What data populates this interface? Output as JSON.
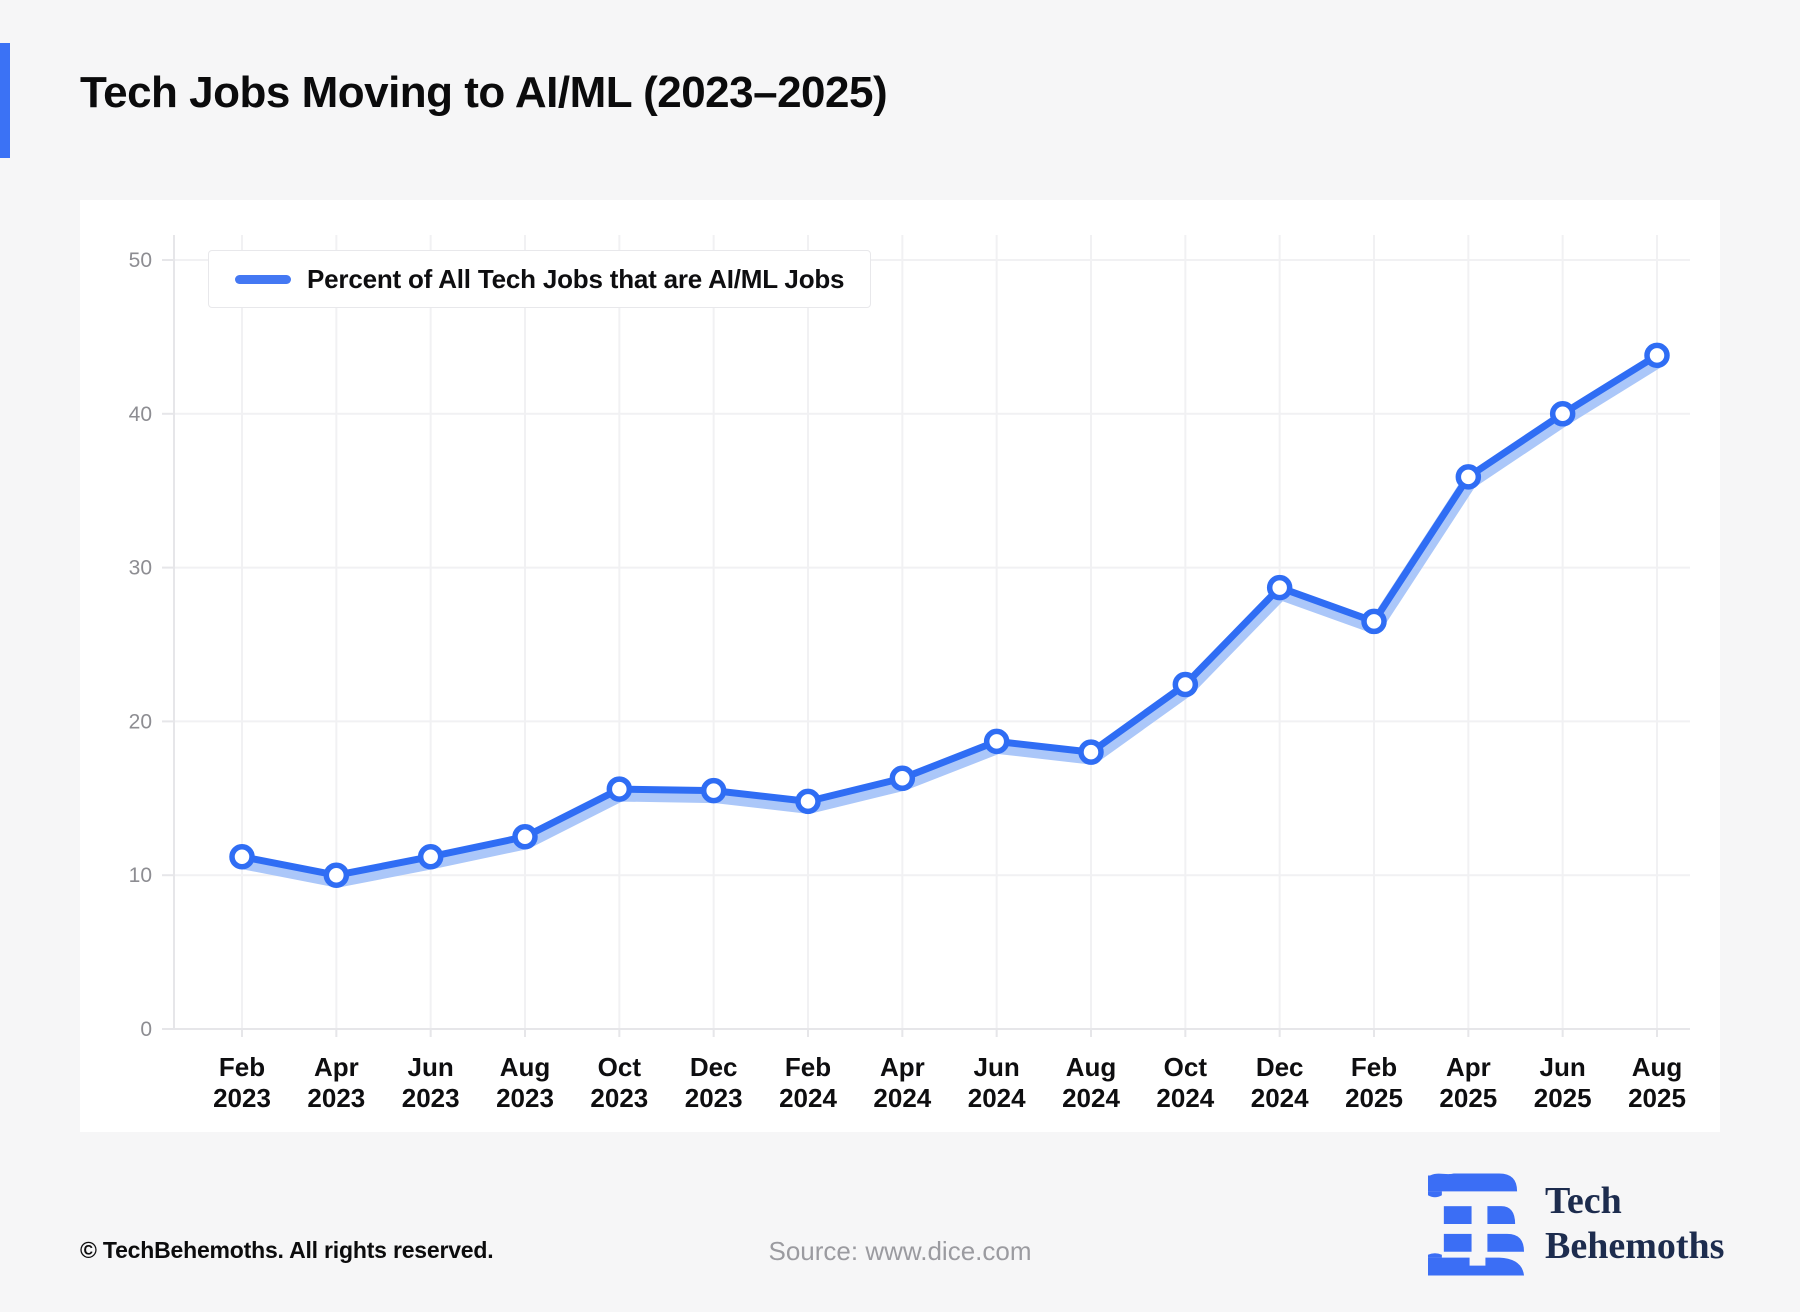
{
  "page": {
    "title": "Tech Jobs Moving to AI/ML (2023–2025)",
    "background_color": "#f6f6f7",
    "accent_color": "#3b72f5"
  },
  "chart_data": {
    "type": "line",
    "title": "Tech Jobs Moving to AI/ML (2023–2025)",
    "legend": [
      "Percent of All Tech Jobs that are AI/ML Jobs"
    ],
    "legend_position": "top-left",
    "categories": [
      "Feb 2023",
      "Apr 2023",
      "Jun 2023",
      "Aug 2023",
      "Oct 2023",
      "Dec 2023",
      "Feb 2024",
      "Apr 2024",
      "Jun 2024",
      "Aug 2024",
      "Oct 2024",
      "Dec 2024",
      "Feb 2025",
      "Apr 2025",
      "Jun 2025",
      "Aug 2025"
    ],
    "values": [
      11.2,
      10.0,
      11.2,
      12.5,
      15.6,
      15.5,
      14.8,
      16.3,
      18.7,
      18.0,
      22.4,
      28.7,
      26.5,
      35.9,
      40.0,
      43.8
    ],
    "xlabel": "",
    "ylabel": "",
    "ylim": [
      0,
      50
    ],
    "yticks": [
      0,
      10,
      20,
      30,
      40,
      50
    ],
    "grid": true,
    "marker": "circle-white-fill",
    "style": {
      "line_color": "#2f6df4",
      "halo_color": "#abc7f9",
      "grid_color": "#f1f1f3",
      "axis_color": "#e6e6e9",
      "ytick_label_color": "#8d8d92",
      "xtick_label_color": "#0e0e10"
    }
  },
  "footer": {
    "copyright": "© TechBehemoths. All rights reserved.",
    "source": "Source: www.dice.com",
    "logo_line1": "Tech",
    "logo_line2": "Behemoths"
  }
}
